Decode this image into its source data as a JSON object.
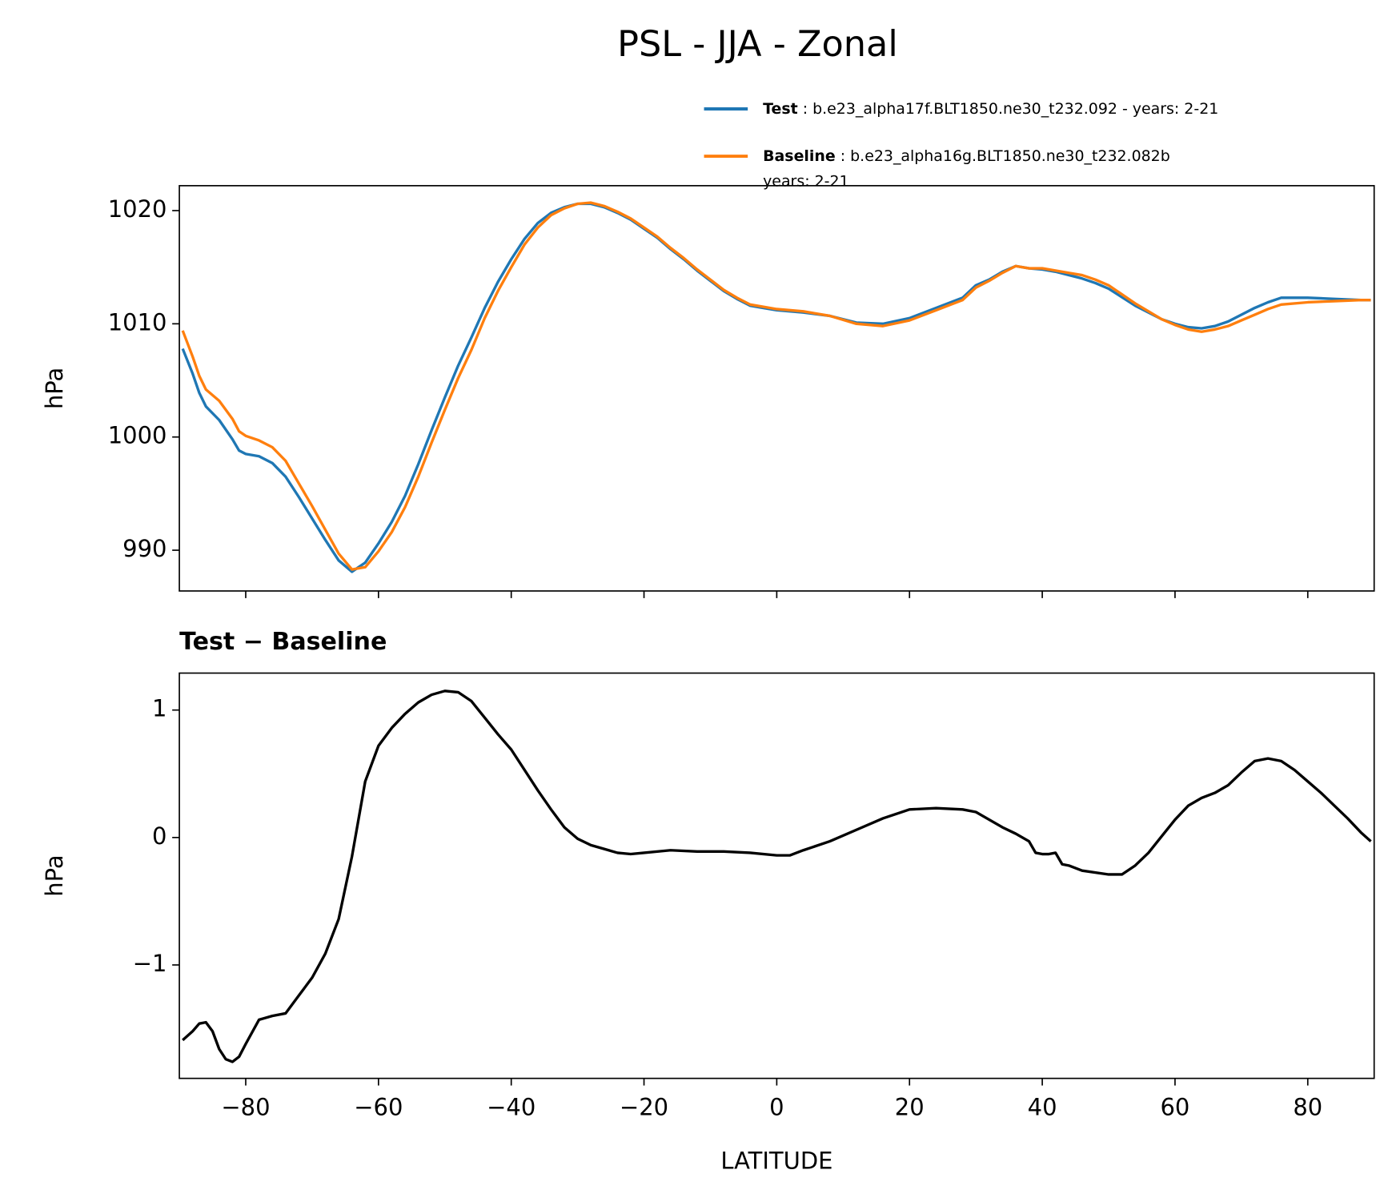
{
  "chart_data": [
    {
      "type": "line",
      "title": "PSL - JJA - Zonal",
      "ylabel": "hPa",
      "x": [
        -89.5,
        -88,
        -87,
        -86,
        -84,
        -82,
        -81,
        -80,
        -78,
        -76,
        -74,
        -72,
        -70,
        -68,
        -66,
        -64,
        -62,
        -60,
        -58,
        -56,
        -54,
        -52,
        -50,
        -48,
        -46,
        -44,
        -42,
        -40,
        -38,
        -36,
        -34,
        -32,
        -30,
        -28,
        -26,
        -24,
        -22,
        -20,
        -18,
        -16,
        -14,
        -12,
        -10,
        -8,
        -6,
        -4,
        -2,
        0,
        4,
        8,
        12,
        16,
        20,
        24,
        28,
        30,
        32,
        34,
        36,
        38,
        40,
        42,
        44,
        46,
        48,
        50,
        54,
        58,
        60,
        62,
        64,
        66,
        68,
        70,
        72,
        74,
        76,
        80,
        84,
        88,
        89.5
      ],
      "series": [
        {
          "name": "Test : b.e23_alpha17f.BLT1850.ne30_t232.092 - years: 2-21",
          "color": "#1f77b4",
          "values": [
            1007.8,
            1005.6,
            1003.9,
            1002.7,
            1001.5,
            999.8,
            998.8,
            998.5,
            998.3,
            997.7,
            996.5,
            994.7,
            992.8,
            990.9,
            989.1,
            988.1,
            988.9,
            990.6,
            992.5,
            994.8,
            997.6,
            1000.6,
            1003.5,
            1006.3,
            1008.8,
            1011.4,
            1013.7,
            1015.7,
            1017.5,
            1018.9,
            1019.8,
            1020.3,
            1020.6,
            1020.6,
            1020.3,
            1019.8,
            1019.2,
            1018.4,
            1017.6,
            1016.6,
            1015.7,
            1014.7,
            1013.8,
            1012.9,
            1012.2,
            1011.6,
            1011.4,
            1011.2,
            1011.0,
            1010.7,
            1010.1,
            1010.0,
            1010.5,
            1011.4,
            1012.3,
            1013.4,
            1013.9,
            1014.6,
            1015.1,
            1014.9,
            1014.8,
            1014.6,
            1014.3,
            1014.0,
            1013.6,
            1013.1,
            1011.6,
            1010.4,
            1010.0,
            1009.7,
            1009.6,
            1009.8,
            1010.2,
            1010.8,
            1011.4,
            1011.9,
            1012.3,
            1012.3,
            1012.2,
            1012.1,
            1012.1
          ]
        },
        {
          "name": "Baseline : b.e23_alpha16g.BLT1850.ne30_t232.082b\nyears: 2-21",
          "color": "#ff7f0e",
          "values": [
            1009.4,
            1007.1,
            1005.4,
            1004.2,
            1003.2,
            1001.6,
            1000.5,
            1000.1,
            999.7,
            999.1,
            997.9,
            995.9,
            993.9,
            991.8,
            989.7,
            988.3,
            988.5,
            989.9,
            991.6,
            993.8,
            996.5,
            999.5,
            1002.4,
            1005.2,
            1007.7,
            1010.5,
            1012.9,
            1015.0,
            1017.0,
            1018.5,
            1019.6,
            1020.2,
            1020.6,
            1020.7,
            1020.4,
            1019.9,
            1019.3,
            1018.5,
            1017.7,
            1016.7,
            1015.8,
            1014.8,
            1013.9,
            1013.0,
            1012.3,
            1011.7,
            1011.5,
            1011.3,
            1011.1,
            1010.7,
            1010.0,
            1009.8,
            1010.3,
            1011.2,
            1012.1,
            1013.2,
            1013.8,
            1014.5,
            1015.1,
            1014.9,
            1014.9,
            1014.7,
            1014.5,
            1014.3,
            1013.9,
            1013.4,
            1011.8,
            1010.4,
            1009.9,
            1009.5,
            1009.3,
            1009.5,
            1009.8,
            1010.3,
            1010.8,
            1011.3,
            1011.7,
            1011.9,
            1012.0,
            1012.1,
            1012.1
          ]
        }
      ],
      "xlim": [
        -90,
        90
      ],
      "xticks": [
        -80,
        -60,
        -40,
        -20,
        0,
        20,
        40,
        60,
        80
      ],
      "ylim": [
        986.4,
        1022.2
      ],
      "yticks": [
        990,
        1000,
        1010,
        1020
      ]
    },
    {
      "type": "line",
      "title": "Test − Baseline",
      "xlabel": "LATITUDE",
      "ylabel": "hPa",
      "color": "#000000",
      "x": [
        -89.5,
        -88,
        -87,
        -86,
        -85,
        -84,
        -83,
        -82,
        -81,
        -80,
        -78,
        -76,
        -74,
        -72,
        -70,
        -68,
        -66,
        -64,
        -62,
        -60,
        -58,
        -56,
        -54,
        -52,
        -50,
        -48,
        -46,
        -44,
        -42,
        -40,
        -38,
        -36,
        -34,
        -32,
        -30,
        -28,
        -26,
        -24,
        -22,
        -20,
        -16,
        -12,
        -8,
        -4,
        0,
        2,
        4,
        8,
        12,
        16,
        20,
        24,
        28,
        30,
        34,
        36,
        38,
        39,
        40,
        41,
        42,
        43,
        44,
        46,
        50,
        52,
        54,
        56,
        58,
        60,
        62,
        64,
        66,
        68,
        70,
        72,
        74,
        76,
        78,
        80,
        82,
        84,
        86,
        88,
        89.5
      ],
      "values": [
        -1.59,
        -1.52,
        -1.46,
        -1.45,
        -1.52,
        -1.66,
        -1.74,
        -1.76,
        -1.72,
        -1.62,
        -1.43,
        -1.4,
        -1.38,
        -1.24,
        -1.1,
        -0.91,
        -0.64,
        -0.15,
        0.44,
        0.72,
        0.86,
        0.97,
        1.06,
        1.12,
        1.15,
        1.14,
        1.07,
        0.94,
        0.81,
        0.69,
        0.53,
        0.37,
        0.22,
        0.08,
        -0.01,
        -0.06,
        -0.09,
        -0.12,
        -0.13,
        -0.12,
        -0.1,
        -0.11,
        -0.11,
        -0.12,
        -0.14,
        -0.14,
        -0.1,
        -0.03,
        0.06,
        0.15,
        0.22,
        0.23,
        0.22,
        0.2,
        0.08,
        0.03,
        -0.03,
        -0.12,
        -0.13,
        -0.13,
        -0.12,
        -0.21,
        -0.22,
        -0.26,
        -0.29,
        -0.29,
        -0.22,
        -0.12,
        0.01,
        0.14,
        0.25,
        0.31,
        0.35,
        0.41,
        0.51,
        0.6,
        0.62,
        0.6,
        0.53,
        0.44,
        0.35,
        0.25,
        0.15,
        0.04,
        -0.03
      ],
      "xlim": [
        -90,
        90
      ],
      "xticks": [
        {
          "value": -80,
          "label": "−80"
        },
        {
          "value": -60,
          "label": "−60"
        },
        {
          "value": -40,
          "label": "−40"
        },
        {
          "value": -20,
          "label": "−20"
        },
        0,
        20,
        40,
        60,
        80
      ],
      "ylim": [
        -1.89,
        1.29
      ],
      "yticks": [
        {
          "value": -1,
          "label": "−1"
        },
        0,
        1
      ]
    }
  ]
}
